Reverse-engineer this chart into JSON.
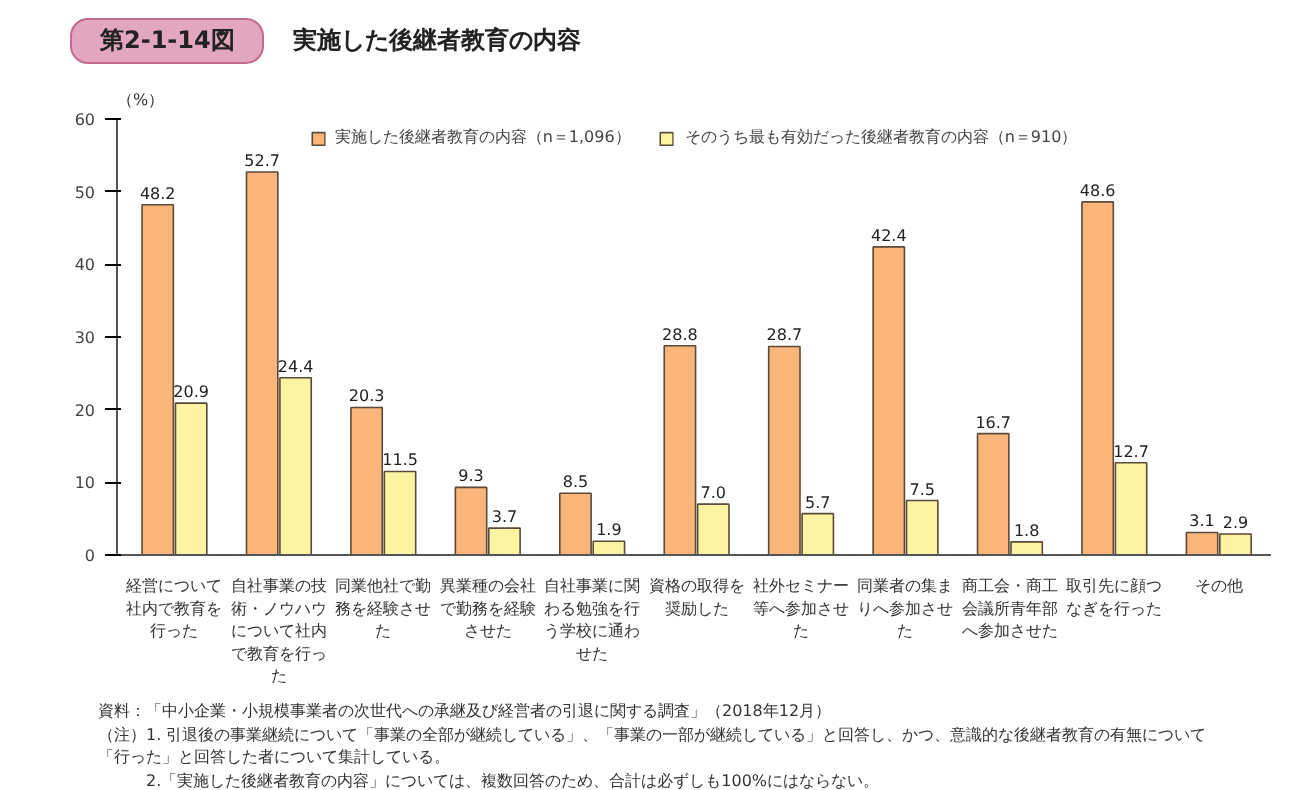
{
  "chart_data": {
    "type": "bar",
    "title": "実施した後継者教育の内容",
    "ylabel": "（%）",
    "categories": [
      "経営について社内で教育を行った",
      "自社事業の技術・ノウハウについて社内で教育を行った",
      "同業他社で勤務を経験させた",
      "異業種の会社で勤務を経験させた",
      "自社事業に関わる勉強を行う学校に通わせた",
      "資格の取得を奨励した",
      "社外セミナー等へ参加させた",
      "同業者の集まりへ参加させた",
      "商工会・商工会議所青年部へ参加させた",
      "取引先に顔つなぎを行った",
      "その他"
    ],
    "series": [
      {
        "name": "実施した後継者教育の内容（n＝1,096）",
        "color": "#f9b57a",
        "values": [
          48.2,
          52.7,
          20.3,
          9.3,
          8.5,
          28.8,
          28.7,
          42.4,
          16.7,
          48.6,
          3.1
        ],
        "value_labels": [
          "48.2",
          "52.7",
          "20.3",
          "9.3",
          "8.5",
          "28.8",
          "28.7",
          "42.4",
          "16.7",
          "48.6",
          "3.1"
        ]
      },
      {
        "name": "そのうち最も有効だった後継者教育の内容（n＝910）",
        "color": "#fdf4a3",
        "values": [
          20.9,
          24.4,
          11.5,
          3.7,
          1.9,
          7.0,
          5.7,
          7.5,
          1.8,
          12.7,
          2.9
        ],
        "value_labels": [
          "20.9",
          "24.4",
          "11.5",
          "3.7",
          "1.9",
          "7.0",
          "5.7",
          "7.5",
          "1.8",
          "12.7",
          "2.9"
        ]
      }
    ],
    "ylim": [
      0,
      60
    ],
    "yticks": [
      0,
      10,
      20,
      30,
      40,
      50,
      60
    ],
    "legend": "top",
    "annotations": [
      "第2-1-14図",
      "資料：「中小企業・小規模事業者の次世代への承継及び経営者の引退に関する調査」（2018年12月）",
      "（注）1. 引退後の事業継続について「事業の全部が継続している」、「事業の一部が継続している」と回答し、かつ、意識的な後継者教育の有無について「行った」と回答した者について集計している。",
      "2.「実施した後継者教育の内容」については、複数回答のため、合計は必ずしも100%にはならない。"
    ]
  }
}
